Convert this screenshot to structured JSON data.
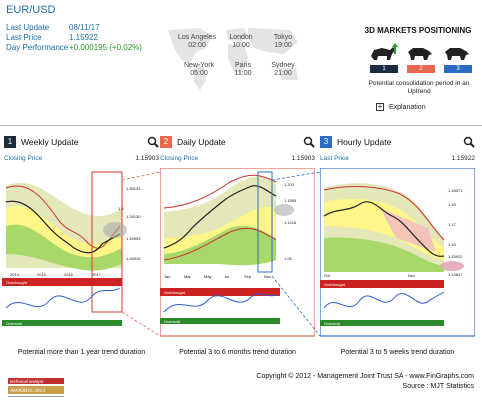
{
  "header": {
    "title": "EUR/USD",
    "rows": [
      {
        "label": "Last Update",
        "value": "08/11/17"
      },
      {
        "label": "Last Price",
        "value": "1.15922"
      },
      {
        "label": "Day Performance",
        "value": "+0.000195 (+0.02%)"
      }
    ]
  },
  "clocks": [
    {
      "city": "Los Angeles",
      "time": "02:00"
    },
    {
      "city": "London",
      "time": "10:00"
    },
    {
      "city": "Tokyo",
      "time": "19:00"
    },
    {
      "city": "New-York",
      "time": "05:00"
    },
    {
      "city": "Paris",
      "time": "11:00"
    },
    {
      "city": "Sydney",
      "time": "21:00"
    }
  ],
  "positioning": {
    "title": "3D MARKETS POSITIONING",
    "badges": [
      "1",
      "2",
      "3"
    ],
    "note": "Potential consolidation period in an Uptrend",
    "explanation": "Explanation",
    "colors": {
      "badge1": "#1c2b3d",
      "badge2": "#e8684f",
      "badge3": "#2b6cc4"
    }
  },
  "panes": [
    {
      "number": "1",
      "title": "Weekly Update",
      "price_label": "Closing Price",
      "price": "1.15903",
      "color": "#1c2b3d",
      "x_ticks": [
        "2014",
        "2015",
        "2016",
        "2017"
      ],
      "levels": [
        "1.39133",
        "1.5",
        "1.24130",
        "1.15903",
        "1.04316"
      ],
      "overbought": "Overbought",
      "oversold": "Oversold",
      "duration": "Potential more than 1 year trend duration"
    },
    {
      "number": "2",
      "title": "Daily Update",
      "price_label": "Closing Price",
      "price": "1.15903",
      "color": "#e8684f",
      "x_ticks": [
        "Jan",
        "Mar",
        "May",
        "Jul",
        "Sep",
        "Nov"
      ],
      "levels": [
        "1.203",
        "1.1595",
        "1.1416",
        "1.05"
      ],
      "overbought": "Overbought",
      "oversold": "Oversold",
      "duration": "Potential 3 to 6 months trend duration"
    },
    {
      "number": "3",
      "title": "Hourly Update",
      "price_label": "Last Price",
      "price": "1.15922",
      "color": "#2b6cc4",
      "x_ticks": [
        "Oct",
        "Nov"
      ],
      "levels": [
        "1.18071",
        "1.18",
        "1.17",
        "1.16",
        "1.15922",
        "1.14847"
      ],
      "overbought": "Overbought",
      "oversold": "Oversold",
      "duration": "Potential 3 to 5 weeks trend duration"
    }
  ],
  "footer": {
    "logo_text": "technical analyst AWARDS 2013",
    "copyright": "Copyright © 2012 - Management Joint Trust SA - www.FinGraphs.com",
    "source": "Source : MJT Statistics"
  }
}
